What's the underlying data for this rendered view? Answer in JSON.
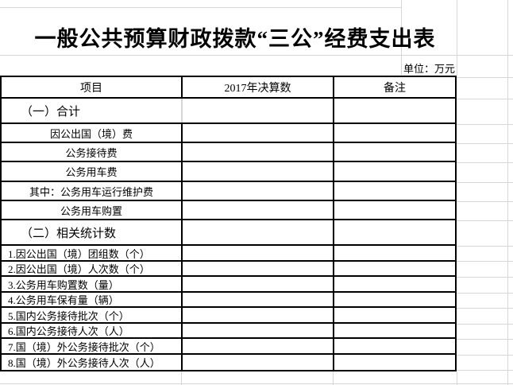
{
  "title": "一般公共预算财政拨款“三公”经费支出表",
  "unit_note": "单位：万元",
  "colors": {
    "border": "#000000",
    "gridline": "#d6d6d6",
    "background": "#ffffff"
  },
  "table": {
    "headers": [
      "项目",
      "2017年决算数",
      "备注"
    ],
    "rows": [
      {
        "label": "（一）合计",
        "value": "",
        "note": ""
      },
      {
        "label": "因公出国（境）费",
        "value": "",
        "note": ""
      },
      {
        "label": "公务接待费",
        "value": "",
        "note": ""
      },
      {
        "label": "公务用车费",
        "value": "",
        "note": ""
      },
      {
        "label": "其中：公务用车运行维护费",
        "value": "",
        "note": ""
      },
      {
        "label": "公务用车购置",
        "value": "",
        "note": ""
      },
      {
        "label": "（二）相关统计数",
        "value": "",
        "note": ""
      },
      {
        "label": "1.因公出国（境）团组数（个）",
        "value": "",
        "note": ""
      },
      {
        "label": "2.因公出国（境）人次数（个）",
        "value": "",
        "note": ""
      },
      {
        "label": "3.公务用车购置数（量）",
        "value": "",
        "note": ""
      },
      {
        "label": "4.公务用车保有量（辆）",
        "value": "",
        "note": ""
      },
      {
        "label": "5.国内公务接待批次（个）",
        "value": "",
        "note": ""
      },
      {
        "label": "6.国内公务接待人次（人）",
        "value": "",
        "note": ""
      },
      {
        "label": "7.国（境）外公务接待批次（个）",
        "value": "",
        "note": ""
      },
      {
        "label": "8.国（境）外公务接待人次（人）",
        "value": "",
        "note": ""
      }
    ]
  }
}
